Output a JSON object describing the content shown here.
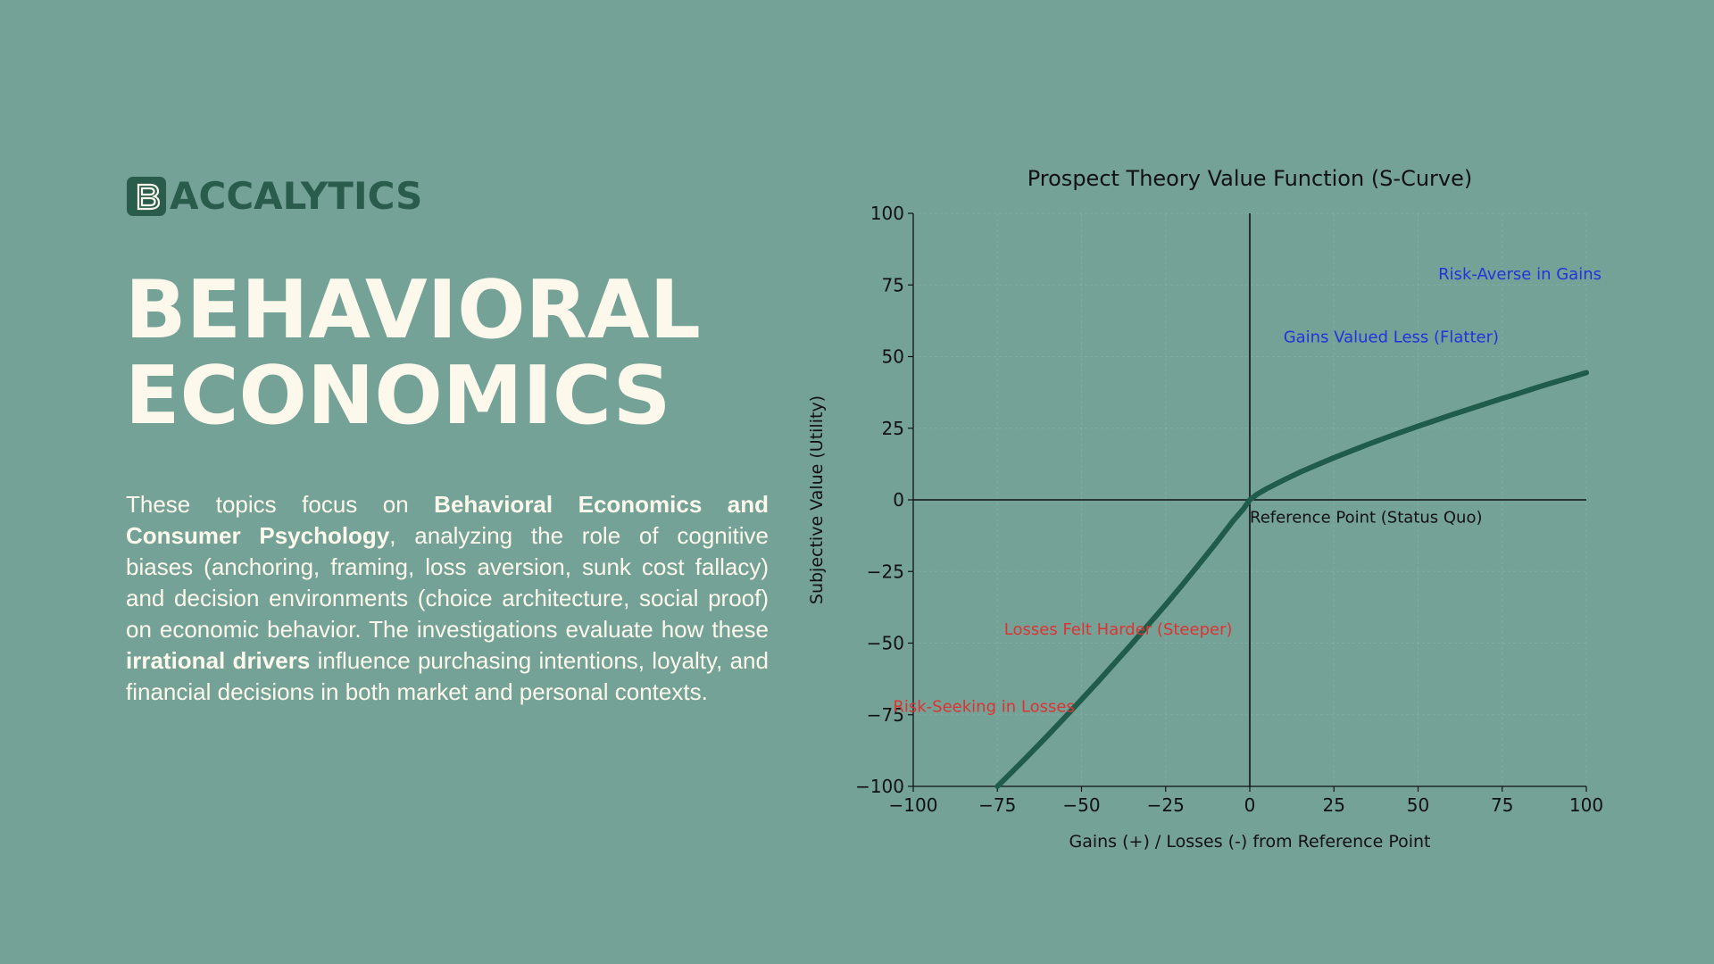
{
  "brand": {
    "mark_letter": "B",
    "name": "ACCALYTICS",
    "color": "#2a5c4c"
  },
  "title": {
    "line1": "BEHAVIORAL",
    "line2": "ECONOMICS"
  },
  "description": {
    "p1": "These topics focus on ",
    "b1": "Behavioral Economics and Consumer Psychology",
    "p2": ", analyzing the role of cognitive biases (anchoring, framing, loss aversion, sunk cost fallacy) and decision environments (choice architecture, social proof) on economic behavior. The investigations evaluate how these ",
    "b2": "irrational drivers",
    "p3": " influence purchasing intentions, loyalty, and financial decisions in both market and personal contexts."
  },
  "colors": {
    "background": "#75a297",
    "text_light": "#fcf9ec",
    "curve": "#1f5c49",
    "gain_annotation": "#2233dd",
    "loss_annotation": "#dd3333"
  },
  "chart_data": {
    "type": "line",
    "title": "Prospect Theory Value Function (S-Curve)",
    "xlabel": "Gains (+) / Losses (-) from Reference Point",
    "ylabel": "Subjective Value (Utility)",
    "xlim": [
      -100,
      100
    ],
    "ylim": [
      -100,
      100
    ],
    "x_ticks": [
      -100,
      -75,
      -50,
      -25,
      0,
      25,
      50,
      75,
      100
    ],
    "y_ticks": [
      -100,
      -75,
      -50,
      -25,
      0,
      25,
      50,
      75,
      100
    ],
    "x_tick_labels": [
      "−100",
      "−75",
      "−50",
      "−25",
      "0",
      "25",
      "50",
      "75",
      "100"
    ],
    "y_tick_labels": [
      "−100",
      "−75",
      "−50",
      "−25",
      "0",
      "25",
      "50",
      "75",
      "100"
    ],
    "grid": true,
    "series": [
      {
        "x": [
          -75,
          -70,
          -65,
          -60,
          -55,
          -50,
          -45,
          -40,
          -35,
          -30,
          -25,
          -20,
          -15,
          -10,
          -5,
          -2,
          0,
          2,
          5,
          10,
          15,
          20,
          25,
          30,
          35,
          40,
          45,
          50,
          55,
          60,
          65,
          70,
          75,
          80,
          85,
          90,
          95,
          100
        ],
        "y": [
          -100,
          -94.2,
          -88.3,
          -82.2,
          -76.0,
          -69.7,
          -63.3,
          -56.8,
          -50.2,
          -43.4,
          -36.6,
          -29.6,
          -22.4,
          -15.0,
          -7.4,
          -3.3,
          0,
          1.8,
          3.9,
          6.9,
          9.7,
          12.2,
          14.7,
          17.0,
          19.3,
          21.5,
          23.6,
          25.7,
          27.7,
          29.7,
          31.6,
          33.5,
          35.4,
          37.2,
          39.1,
          40.9,
          42.6,
          44.4
        ]
      }
    ],
    "annotations": [
      {
        "text": "Reference Point (Status Quo)",
        "x": 0,
        "y": -8,
        "color": "#111111"
      },
      {
        "text": "Risk-Averse in Gains",
        "x": 56,
        "y": 77,
        "color": "#2233dd"
      },
      {
        "text": "Gains Valued Less (Flatter)",
        "x": 10,
        "y": 55,
        "color": "#2233dd"
      },
      {
        "text": "Losses Felt Harder (Steeper)",
        "x": -73,
        "y": -47,
        "color": "#dd3333"
      },
      {
        "text": "Risk-Seeking in Losses",
        "x": -106,
        "y": -74,
        "color": "#dd3333"
      }
    ]
  }
}
